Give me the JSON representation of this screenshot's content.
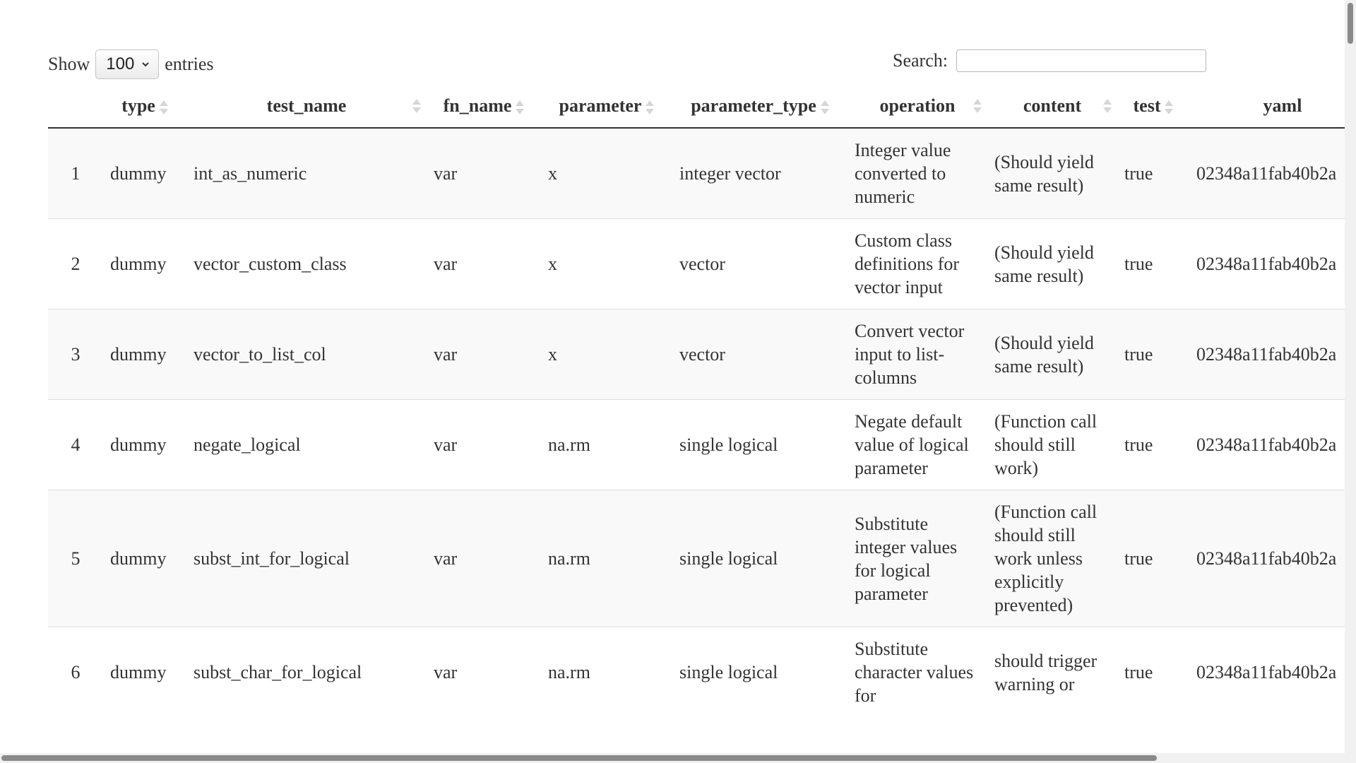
{
  "controls": {
    "show_label": "Show",
    "length_value": "100",
    "entries_label": "entries",
    "search_label": "Search:",
    "search_value": "",
    "search_placeholder": ""
  },
  "table": {
    "columns": [
      {
        "key": "index",
        "label": ""
      },
      {
        "key": "type",
        "label": "type"
      },
      {
        "key": "test_name",
        "label": "test_name"
      },
      {
        "key": "fn_name",
        "label": "fn_name"
      },
      {
        "key": "parameter",
        "label": "parameter"
      },
      {
        "key": "parameter_type",
        "label": "parameter_type"
      },
      {
        "key": "operation",
        "label": "operation"
      },
      {
        "key": "content",
        "label": "content"
      },
      {
        "key": "test",
        "label": "test"
      },
      {
        "key": "yaml",
        "label": "yaml"
      }
    ],
    "rows": [
      {
        "index": "1",
        "type": "dummy",
        "test_name": "int_as_numeric",
        "fn_name": "var",
        "parameter": "x",
        "parameter_type": "integer vector",
        "operation": "Integer value converted to numeric",
        "content": "(Should yield same result)",
        "test": "true",
        "yaml": "02348a11fab40b2a"
      },
      {
        "index": "2",
        "type": "dummy",
        "test_name": "vector_custom_class",
        "fn_name": "var",
        "parameter": "x",
        "parameter_type": "vector",
        "operation": "Custom class definitions for vector input",
        "content": "(Should yield same result)",
        "test": "true",
        "yaml": "02348a11fab40b2a"
      },
      {
        "index": "3",
        "type": "dummy",
        "test_name": "vector_to_list_col",
        "fn_name": "var",
        "parameter": "x",
        "parameter_type": "vector",
        "operation": "Convert vector input to list-columns",
        "content": "(Should yield same result)",
        "test": "true",
        "yaml": "02348a11fab40b2a"
      },
      {
        "index": "4",
        "type": "dummy",
        "test_name": "negate_logical",
        "fn_name": "var",
        "parameter": "na.rm",
        "parameter_type": "single logical",
        "operation": "Negate default value of logical parameter",
        "content": "(Function call should still work)",
        "test": "true",
        "yaml": "02348a11fab40b2a"
      },
      {
        "index": "5",
        "type": "dummy",
        "test_name": "subst_int_for_logical",
        "fn_name": "var",
        "parameter": "na.rm",
        "parameter_type": "single logical",
        "operation": "Substitute integer values for logical parameter",
        "content": "(Function call should still work unless explicitly prevented)",
        "test": "true",
        "yaml": "02348a11fab40b2a"
      },
      {
        "index": "6",
        "type": "dummy",
        "test_name": "subst_char_for_logical",
        "fn_name": "var",
        "parameter": "na.rm",
        "parameter_type": "single logical",
        "operation": "Substitute character values for",
        "content": "should trigger warning or",
        "test": "true",
        "yaml": "02348a11fab40b2a"
      }
    ]
  }
}
